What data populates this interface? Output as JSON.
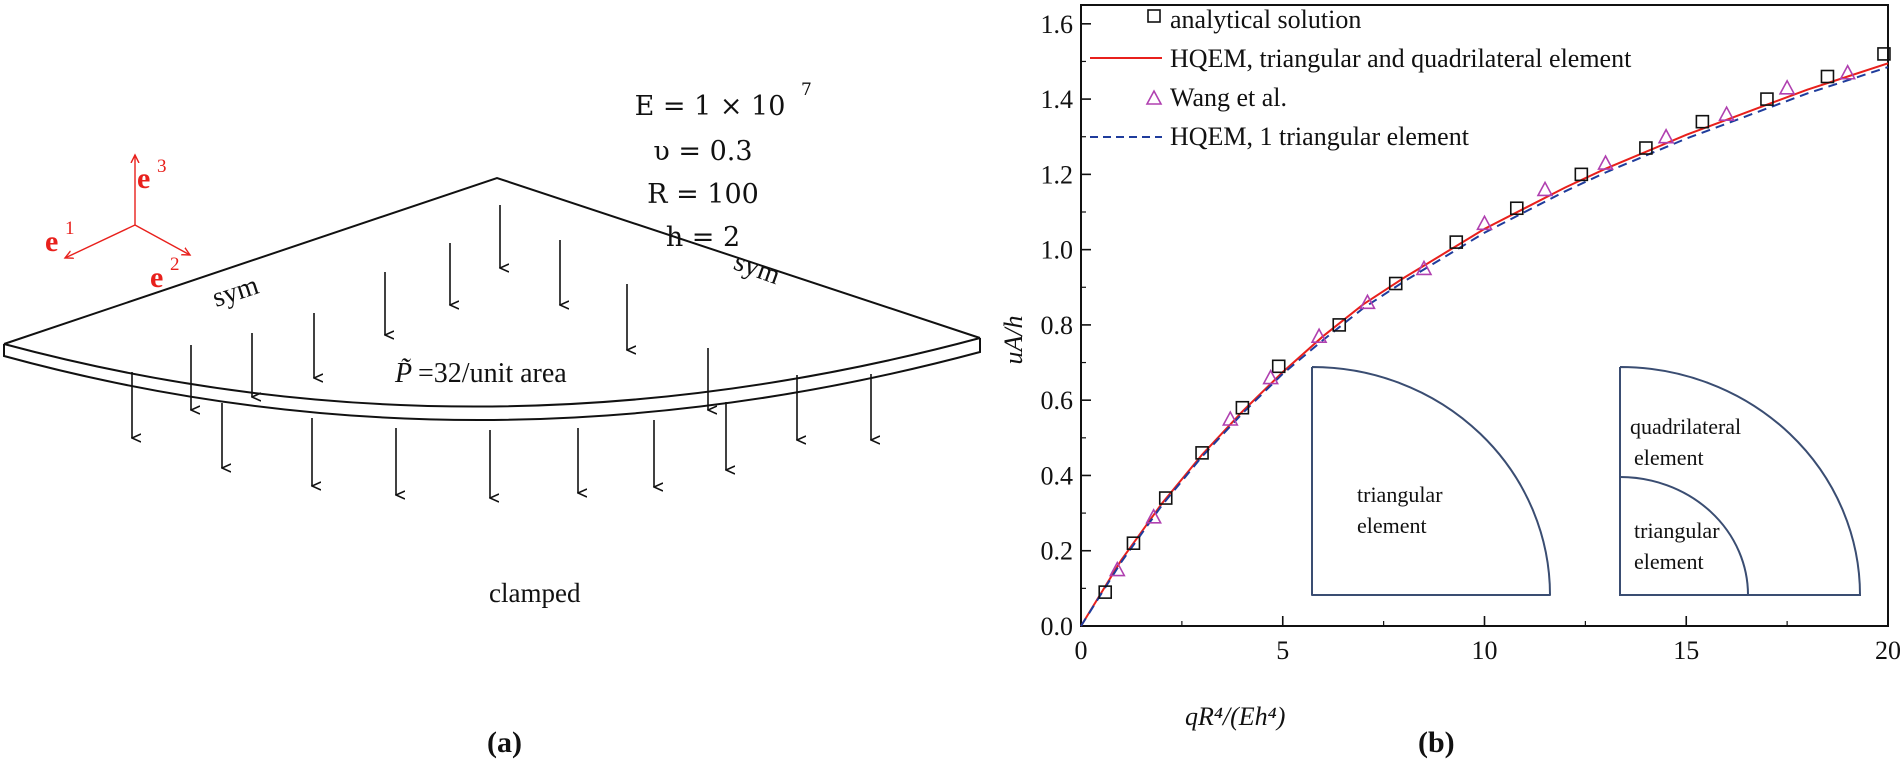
{
  "panel_a": {
    "caption": "(a)",
    "axes": {
      "e1": "1",
      "e2": "2",
      "e3": "3"
    },
    "params": [
      "E = 1 × 10",
      "υ = 0.3",
      "R = 100",
      "h = 2"
    ],
    "param_exponent": "7",
    "labels": {
      "sym_left": "sym",
      "sym_right": "sym",
      "pressure": "=32/unit area",
      "pressure_symbol": "P̃",
      "clamped": "clamped"
    },
    "colors": {
      "axes": "#e8201c",
      "ink": "#111111"
    }
  },
  "panel_b": {
    "caption": "(b)",
    "inset_left": {
      "label": [
        "triangular",
        "element"
      ]
    },
    "inset_right": {
      "label_quad": [
        "quadrilateral",
        "element"
      ],
      "label_tri": [
        "triangular",
        "element"
      ]
    }
  },
  "chart_data": {
    "type": "line",
    "xlabel": "qR⁴/(Eh⁴)",
    "ylabel": "uA/h",
    "xlim": [
      0,
      20
    ],
    "ylim": [
      0,
      1.65
    ],
    "xticks": [
      "0",
      "5",
      "10",
      "15",
      "20"
    ],
    "yticks": [
      "0.0",
      "0.2",
      "0.4",
      "0.6",
      "0.8",
      "1.0",
      "1.2",
      "1.4",
      "1.6"
    ],
    "legend_position": "top-left",
    "series": [
      {
        "name": "analytical solution",
        "style": "square-markers",
        "color": "#111111",
        "x": [
          0.6,
          1.3,
          2.1,
          3.0,
          4.0,
          4.9,
          6.4,
          7.8,
          9.3,
          10.8,
          12.4,
          14.0,
          15.4,
          17.0,
          18.5,
          19.9
        ],
        "y": [
          0.09,
          0.22,
          0.34,
          0.46,
          0.58,
          0.69,
          0.8,
          0.91,
          1.02,
          1.11,
          1.2,
          1.27,
          1.34,
          1.4,
          1.46,
          1.52
        ]
      },
      {
        "name": "HQEM, triangular and quadrilateral element",
        "style": "solid",
        "color": "#e8201c",
        "x": [
          0,
          1,
          2,
          3,
          4,
          5,
          6,
          7,
          8,
          9,
          10,
          11,
          12,
          13,
          14,
          15,
          16,
          17,
          18,
          19,
          20
        ],
        "y": [
          0,
          0.175,
          0.325,
          0.455,
          0.57,
          0.675,
          0.77,
          0.855,
          0.925,
          0.99,
          1.055,
          1.11,
          1.165,
          1.215,
          1.26,
          1.305,
          1.345,
          1.385,
          1.425,
          1.46,
          1.495
        ]
      },
      {
        "name": "Wang et al.",
        "style": "triangle-markers",
        "color": "#b040b0",
        "x": [
          0.9,
          1.8,
          3.7,
          4.7,
          5.9,
          7.1,
          8.5,
          10.0,
          11.5,
          13.0,
          14.5,
          16.0,
          17.5,
          19.0
        ],
        "y": [
          0.15,
          0.29,
          0.55,
          0.66,
          0.77,
          0.86,
          0.95,
          1.07,
          1.16,
          1.23,
          1.3,
          1.36,
          1.43,
          1.47
        ]
      },
      {
        "name": "HQEM, 1 triangular element",
        "style": "dashed",
        "color": "#1f3c9c",
        "x": [
          0,
          1,
          2,
          3,
          4,
          5,
          6,
          7,
          8,
          9,
          10,
          11,
          12,
          13,
          14,
          15,
          16,
          17,
          18,
          19,
          20
        ],
        "y": [
          0,
          0.17,
          0.32,
          0.45,
          0.565,
          0.67,
          0.76,
          0.845,
          0.915,
          0.98,
          1.045,
          1.1,
          1.155,
          1.205,
          1.25,
          1.295,
          1.335,
          1.375,
          1.415,
          1.45,
          1.485
        ]
      }
    ]
  }
}
